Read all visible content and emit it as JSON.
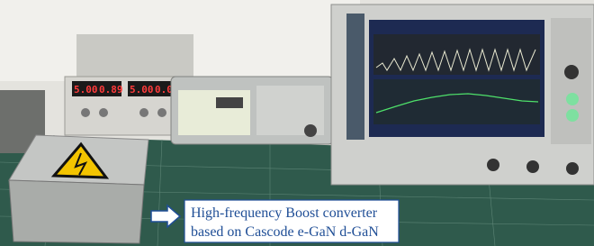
{
  "photo": {
    "caption": [
      "High-frequency Boost converter",
      "based on Cascode e-GaN d-GaN"
    ],
    "power_supply_displays": [
      "5.00",
      "0.89",
      "5.00",
      "0.00"
    ]
  }
}
